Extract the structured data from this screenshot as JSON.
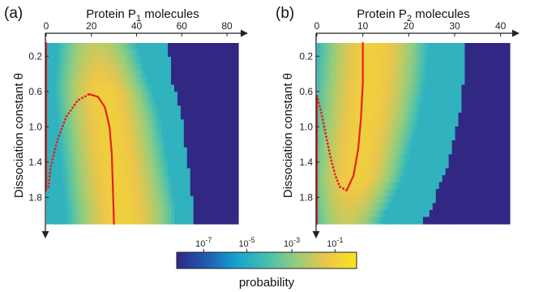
{
  "chart_data": [
    {
      "type": "heatmap",
      "panel_label": "(a)",
      "title": "",
      "xlabel": "Protein P",
      "xlabel_sub": "1",
      "xlabel_suffix": " molecules",
      "ylabel": "Dissociation constant θ",
      "x_ticks": [
        0,
        20,
        40,
        60,
        80
      ],
      "y_ticks": [
        0.2,
        0.6,
        1.0,
        1.4,
        1.8
      ],
      "xlim": [
        0,
        85
      ],
      "ylim": [
        0.05,
        2.1
      ],
      "support_edge": {
        "theta": [
          0.05,
          0.3,
          0.5,
          0.7,
          0.9,
          1.1,
          1.3,
          1.5,
          1.7,
          1.9,
          2.1
        ],
        "max_molecules": [
          54,
          55,
          56,
          58,
          60,
          61,
          62,
          63,
          64,
          65,
          65
        ]
      },
      "curves": [
        {
          "style": "solid",
          "color": "#e8201c",
          "points": [
            [
              0,
              0.05
            ],
            [
              0,
              1.72
            ]
          ]
        },
        {
          "style": "dotted",
          "color": "#e8201c",
          "points": [
            [
              1,
              1.68
            ],
            [
              2,
              1.45
            ],
            [
              5,
              1.15
            ],
            [
              9,
              0.88
            ],
            [
              14,
              0.7
            ],
            [
              19,
              0.63
            ]
          ]
        },
        {
          "style": "solid",
          "color": "#e8201c",
          "points": [
            [
              19,
              0.63
            ],
            [
              23,
              0.66
            ],
            [
              26,
              0.78
            ],
            [
              28,
              1.0
            ],
            [
              29,
              1.3
            ],
            [
              29.5,
              1.7
            ],
            [
              30,
              2.1
            ]
          ]
        }
      ]
    },
    {
      "type": "heatmap",
      "panel_label": "(b)",
      "title": "",
      "xlabel": "Protein P",
      "xlabel_sub": "2",
      "xlabel_suffix": " molecules",
      "ylabel": "Dissociation constant θ",
      "x_ticks": [
        0,
        10,
        20,
        30,
        40
      ],
      "y_ticks": [
        0.2,
        0.6,
        1.0,
        1.4,
        1.8
      ],
      "xlim": [
        0,
        42
      ],
      "ylim": [
        0.05,
        2.1
      ],
      "support_edge": {
        "theta": [
          0.05,
          0.3,
          0.5,
          0.7,
          0.9,
          1.1,
          1.3,
          1.5,
          1.7,
          1.9,
          2.1
        ],
        "max_molecules": [
          32,
          32,
          32,
          31.5,
          31,
          30,
          29,
          28,
          26.5,
          25,
          23
        ]
      },
      "curves": [
        {
          "style": "solid",
          "color": "#e8201c",
          "points": [
            [
              0,
              0.65
            ],
            [
              0,
              2.1
            ]
          ]
        },
        {
          "style": "dotted",
          "color": "#e8201c",
          "points": [
            [
              0,
              0.65
            ],
            [
              1,
              0.85
            ],
            [
              2,
              1.1
            ],
            [
              3,
              1.35
            ],
            [
              4,
              1.55
            ],
            [
              5,
              1.68
            ],
            [
              6.5,
              1.72
            ]
          ]
        },
        {
          "style": "solid",
          "color": "#e8201c",
          "points": [
            [
              6.5,
              1.72
            ],
            [
              8,
              1.55
            ],
            [
              9,
              1.25
            ],
            [
              9.6,
              0.9
            ],
            [
              10,
              0.5
            ],
            [
              10,
              0.05
            ]
          ]
        }
      ]
    }
  ],
  "colorbar": {
    "label": "probability",
    "ticks": [
      {
        "base": "10",
        "exp": "-7",
        "pos": 0.15
      },
      {
        "base": "10",
        "exp": "-5",
        "pos": 0.39
      },
      {
        "base": "10",
        "exp": "-3",
        "pos": 0.64
      },
      {
        "base": "10",
        "exp": "-1",
        "pos": 0.88
      }
    ],
    "colors": [
      "#302883",
      "#1f5bb0",
      "#17a3cf",
      "#47bfb0",
      "#95cd7c",
      "#ecc64a",
      "#fae51e"
    ]
  }
}
